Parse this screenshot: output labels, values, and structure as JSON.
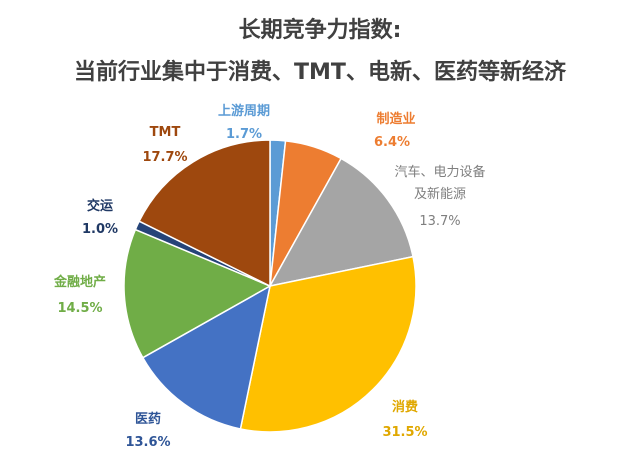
{
  "chart_data": {
    "type": "pie",
    "title": "长期竞争力指数:",
    "subtitle": "当前行业集中于消费、TMT、电新、医药等新经济",
    "categories": [
      "上游周期",
      "制造业",
      "汽车、电力设备\n及新能源",
      "消费",
      "医药",
      "金融地产",
      "交运",
      "TMT"
    ],
    "values": [
      1.7,
      6.4,
      13.7,
      31.5,
      13.6,
      14.5,
      1.0,
      17.7
    ],
    "value_labels": [
      "1.7%",
      "6.4%",
      "13.7%",
      "31.5%",
      "13.6%",
      "14.5%",
      "1.0%",
      "17.7%"
    ],
    "colors": [
      "#5b9bd5",
      "#ed7d31",
      "#a5a5a5",
      "#ffc000",
      "#4472c4",
      "#70ad47",
      "#264478",
      "#9e480e"
    ],
    "label_colors": [
      "#5b9bd5",
      "#ed7d31",
      "#7f7f7f",
      "#e0a800",
      "#2f5597",
      "#70ad47",
      "#1f3864",
      "#9e480e"
    ]
  }
}
